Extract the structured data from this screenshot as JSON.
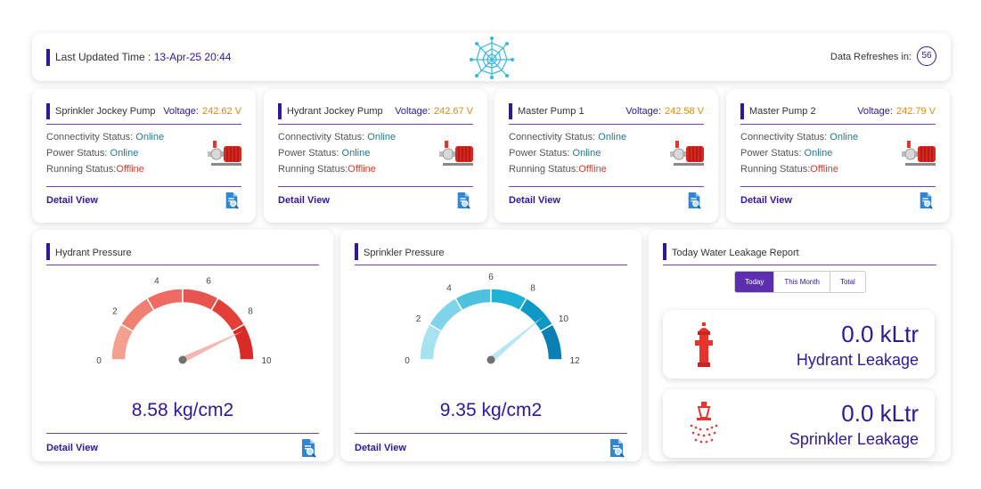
{
  "header": {
    "last_updated_label": "Last Updated Time :",
    "last_updated_value": "13-Apr-25 20:44",
    "refresh_label": "Data Refreshes in:",
    "refresh_seconds": "56"
  },
  "pumps": [
    {
      "title": "Sprinkler Jockey Pump",
      "voltage_label": "Voltage:",
      "voltage": "242.62 V",
      "connectivity_label": "Connectivity Status:",
      "connectivity": "Online",
      "power_label": "Power Status:",
      "power": "Online",
      "running_label": "Running Status:",
      "running": "Offline",
      "detail": "Detail View"
    },
    {
      "title": "Hydrant Jockey Pump",
      "voltage_label": "Voltage:",
      "voltage": "242.67 V",
      "connectivity_label": "Connectivity Status:",
      "connectivity": "Online",
      "power_label": "Power Status:",
      "power": "Online",
      "running_label": "Running Status:",
      "running": "Offline",
      "detail": "Detail View"
    },
    {
      "title": "Master Pump 1",
      "voltage_label": "Voltage:",
      "voltage": "242.58 V",
      "connectivity_label": "Connectivity Status:",
      "connectivity": "Online",
      "power_label": "Power Status:",
      "power": "Online",
      "running_label": "Running Status:",
      "running": "Offline",
      "detail": "Detail View"
    },
    {
      "title": "Master Pump 2",
      "voltage_label": "Voltage:",
      "voltage": "242.79 V",
      "connectivity_label": "Connectivity Status:",
      "connectivity": "Online",
      "power_label": "Power Status:",
      "power": "Online",
      "running_label": "Running Status:",
      "running": "Offline",
      "detail": "Detail View"
    }
  ],
  "gauges": [
    {
      "title": "Hydrant Pressure",
      "value_text": "8.58 kg/cm2",
      "value": 8.58,
      "max": 10,
      "ticks": [
        "0",
        "2",
        "4",
        "6",
        "8",
        "10"
      ],
      "colors": [
        "#f4a090",
        "#f08070",
        "#ee6a62",
        "#e85550",
        "#e3403a",
        "#d92a25"
      ],
      "needle_color": "#f6b7b3",
      "detail": "Detail View"
    },
    {
      "title": "Sprinkler Pressure",
      "value_text": "9.35 kg/cm2",
      "value": 9.35,
      "max": 12,
      "ticks": [
        "0",
        "2",
        "4",
        "6",
        "8",
        "10",
        "12"
      ],
      "colors": [
        "#a6e3f0",
        "#7fd3ea",
        "#4cc2e0",
        "#1fb0d5",
        "#0e98c6",
        "#0a7fb4"
      ],
      "needle_color": "#b9e6f4",
      "detail": "Detail View"
    }
  ],
  "leakage": {
    "title": "Today Water Leakage Report",
    "tabs": [
      "Today",
      "This Month",
      "Total"
    ],
    "active_tab": "Today",
    "hydrant_value": "0.0 kLtr",
    "hydrant_label": "Hydrant Leakage",
    "sprinkler_value": "0.0 kLtr",
    "sprinkler_label": "Sprinkler Leakage"
  }
}
